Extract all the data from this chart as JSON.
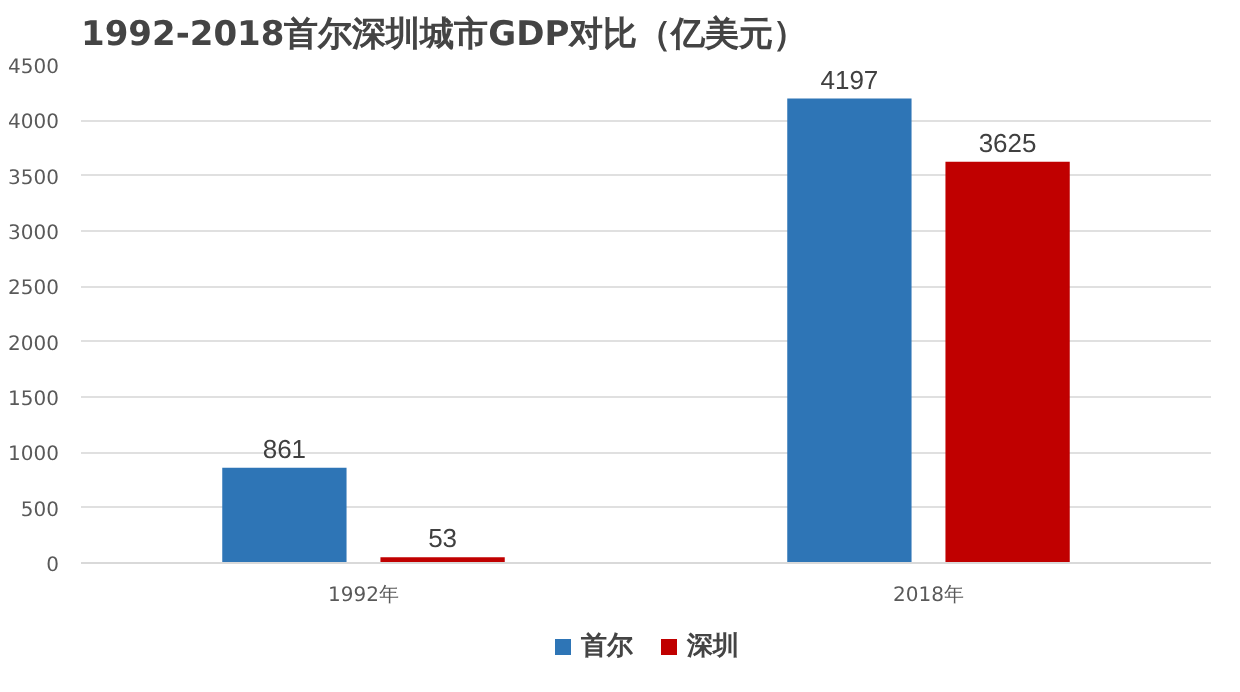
{
  "chart_data": {
    "type": "bar",
    "title": "1992-2018首尔深圳城市GDP对比（亿美元）",
    "categories": [
      "1992年",
      "2018年"
    ],
    "series": [
      {
        "name": "首尔",
        "color": "#2e75b6",
        "values": [
          861,
          4197
        ]
      },
      {
        "name": "深圳",
        "color": "#c00000",
        "values": [
          53,
          3625
        ]
      }
    ],
    "ylim": [
      0,
      4500
    ],
    "yticks": [
      0,
      500,
      1000,
      1500,
      2000,
      2500,
      3000,
      3500,
      4000,
      4500
    ],
    "grid": "y",
    "legend": "bottom",
    "data_labels": true
  }
}
